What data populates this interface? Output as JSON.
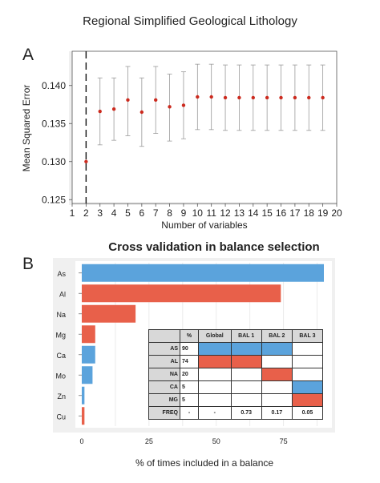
{
  "figure_title": "Regional Simplified Geological Lithology",
  "panel_labels": [
    "A",
    "B"
  ],
  "colors": {
    "blue": "#5ba3dc",
    "red": "#e8604a",
    "dot": "#cc2a1e",
    "grid": "#e6e6e6",
    "panel": "#f0f0f0"
  },
  "chart_data": [
    {
      "type": "scatter",
      "title": "",
      "xlabel": "Number of variables",
      "ylabel": "Mean Squared Error",
      "xlim": [
        1,
        20
      ],
      "ylim": [
        0.1245,
        0.1445
      ],
      "xticks": [
        1,
        2,
        3,
        4,
        5,
        6,
        7,
        8,
        9,
        10,
        11,
        12,
        13,
        14,
        15,
        16,
        17,
        18,
        19,
        20
      ],
      "yticks": [
        0.125,
        0.13,
        0.135,
        0.14
      ],
      "ytick_labels": [
        "0.125",
        "0.130",
        "0.135",
        "0.140"
      ],
      "vline_x": 2,
      "points": [
        {
          "x": 2,
          "y": 0.13,
          "err_low": null,
          "err_high": null
        },
        {
          "x": 3,
          "y": 0.1366,
          "err_low": 0.1322,
          "err_high": 0.141
        },
        {
          "x": 4,
          "y": 0.1369,
          "err_low": 0.1328,
          "err_high": 0.141
        },
        {
          "x": 5,
          "y": 0.1381,
          "err_low": 0.1334,
          "err_high": 0.1425
        },
        {
          "x": 6,
          "y": 0.1365,
          "err_low": 0.132,
          "err_high": 0.141
        },
        {
          "x": 7,
          "y": 0.1381,
          "err_low": 0.1337,
          "err_high": 0.1425
        },
        {
          "x": 8,
          "y": 0.1372,
          "err_low": 0.1327,
          "err_high": 0.1415
        },
        {
          "x": 9,
          "y": 0.1374,
          "err_low": 0.133,
          "err_high": 0.1418
        },
        {
          "x": 10,
          "y": 0.1385,
          "err_low": 0.1342,
          "err_high": 0.1428
        },
        {
          "x": 11,
          "y": 0.1385,
          "err_low": 0.1342,
          "err_high": 0.1428
        },
        {
          "x": 12,
          "y": 0.1384,
          "err_low": 0.1341,
          "err_high": 0.1427
        },
        {
          "x": 13,
          "y": 0.1384,
          "err_low": 0.1341,
          "err_high": 0.1427
        },
        {
          "x": 14,
          "y": 0.1384,
          "err_low": 0.1341,
          "err_high": 0.1427
        },
        {
          "x": 15,
          "y": 0.1384,
          "err_low": 0.1341,
          "err_high": 0.1427
        },
        {
          "x": 16,
          "y": 0.1384,
          "err_low": 0.1341,
          "err_high": 0.1427
        },
        {
          "x": 17,
          "y": 0.1384,
          "err_low": 0.1341,
          "err_high": 0.1427
        },
        {
          "x": 18,
          "y": 0.1384,
          "err_low": 0.1341,
          "err_high": 0.1427
        },
        {
          "x": 19,
          "y": 0.1384,
          "err_low": 0.1341,
          "err_high": 0.1427
        }
      ]
    },
    {
      "type": "bar",
      "orientation": "horizontal",
      "title": "Cross validation in balance selection",
      "xlabel": "% of times included in a balance",
      "ylabel": "",
      "xlim": [
        0,
        90
      ],
      "xticks": [
        0,
        25,
        50,
        75
      ],
      "categories": [
        "As",
        "Al",
        "Na",
        "Mg",
        "Ca",
        "Mo",
        "Zn",
        "Cu"
      ],
      "values": [
        90,
        74,
        20,
        5,
        5,
        4,
        1,
        1
      ],
      "bar_colors": [
        "blue",
        "red",
        "red",
        "red",
        "blue",
        "blue",
        "blue",
        "red"
      ]
    }
  ],
  "table": {
    "headers": [
      "",
      "%",
      "Global",
      "BAL 1",
      "BAL 2",
      "BAL 3"
    ],
    "rows": [
      {
        "label": "AS",
        "pct": "90",
        "cells": [
          "blue",
          "blue",
          "blue",
          ""
        ]
      },
      {
        "label": "AL",
        "pct": "74",
        "cells": [
          "red",
          "red",
          "",
          ""
        ]
      },
      {
        "label": "NA",
        "pct": "20",
        "cells": [
          "",
          "",
          "red",
          ""
        ]
      },
      {
        "label": "CA",
        "pct": "5",
        "cells": [
          "",
          "",
          "",
          "blue"
        ]
      },
      {
        "label": "MG",
        "pct": "5",
        "cells": [
          "",
          "",
          "",
          "red"
        ]
      }
    ],
    "freq_row": {
      "label": "FREQ",
      "values": [
        "-",
        "-",
        "0.73",
        "0.17",
        "0.05"
      ]
    }
  }
}
